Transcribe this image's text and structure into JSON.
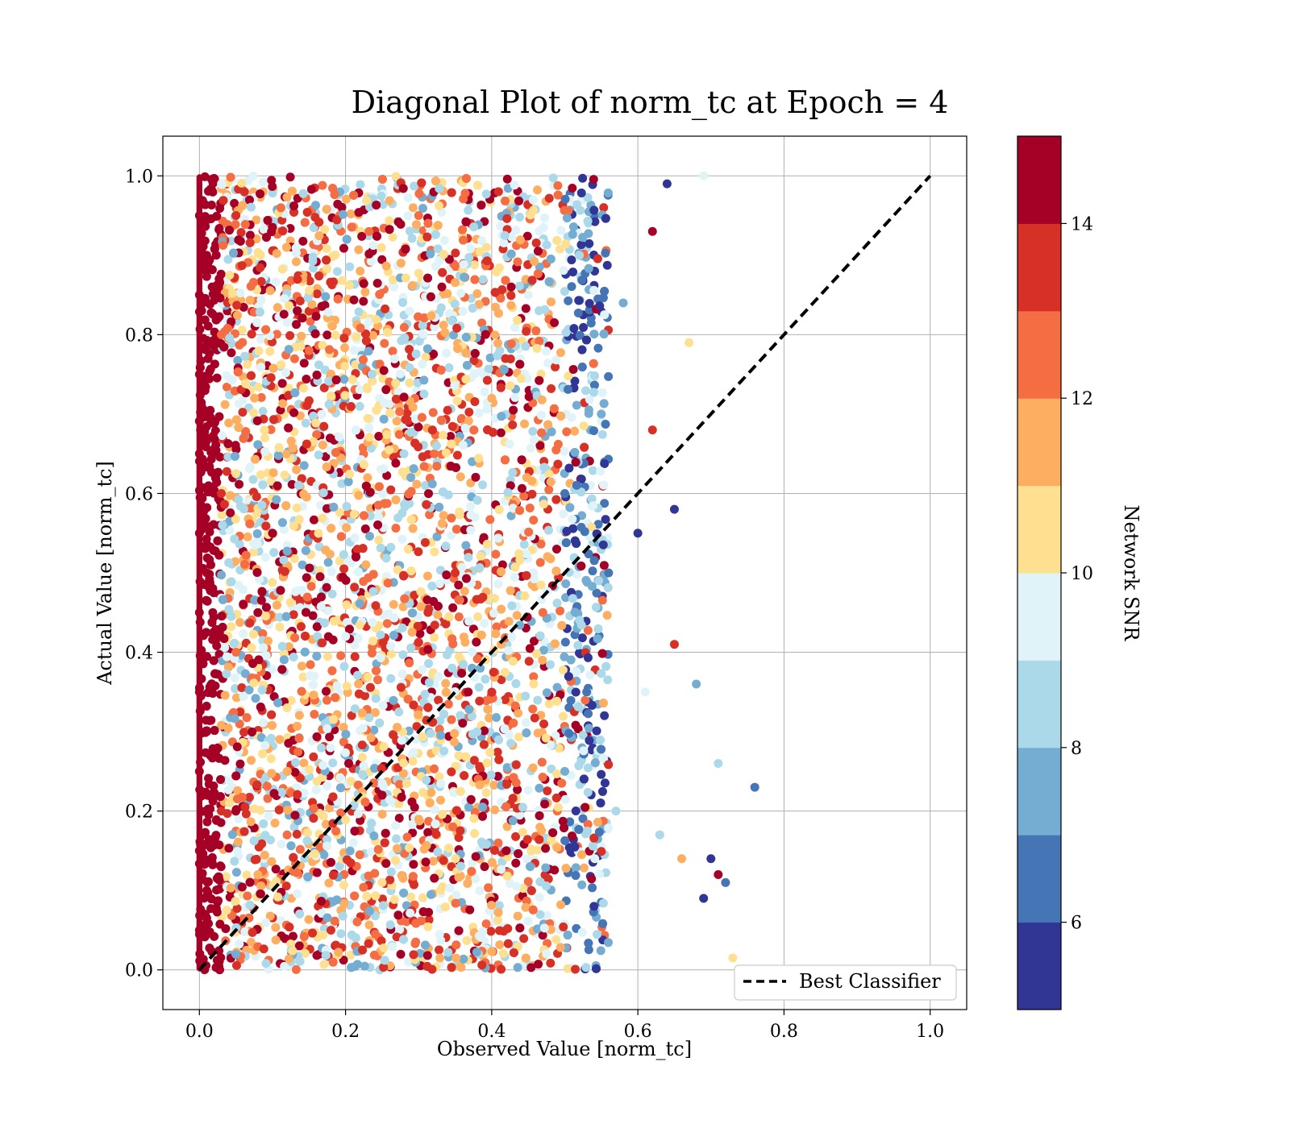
{
  "chart_data": {
    "type": "scatter",
    "title": "Diagonal Plot of norm_tc at Epoch = 4",
    "xlabel": "Observed Value [norm_tc]",
    "ylabel": "Actual Value [norm_tc]",
    "xlim": [
      -0.05,
      1.05
    ],
    "ylim": [
      -0.05,
      1.05
    ],
    "x_ticks": [
      "0.0",
      "0.2",
      "0.4",
      "0.6",
      "0.8",
      "1.0"
    ],
    "y_ticks": [
      "0.0",
      "0.2",
      "0.4",
      "0.6",
      "0.8",
      "1.0"
    ],
    "grid": true,
    "legend": {
      "position": "bottom-right",
      "entries": [
        "Best Classifier"
      ]
    },
    "reference_line": {
      "name": "Best Classifier",
      "style": "dashed",
      "color": "#000000",
      "x": [
        0,
        1
      ],
      "y": [
        0,
        1
      ]
    },
    "colorbar": {
      "label": "Network SNR",
      "range": [
        5,
        15
      ],
      "ticks": [
        "6",
        "8",
        "10",
        "12",
        "14"
      ],
      "colors": [
        "#313695",
        "#4575b4",
        "#74add1",
        "#abd9e9",
        "#e0f3f8",
        "#fee090",
        "#fdae61",
        "#f46d43",
        "#d73027",
        "#a50026"
      ]
    },
    "points": [
      [
        0.0,
        0.05,
        15
      ],
      [
        0.0,
        0.15,
        15
      ],
      [
        0.0,
        0.25,
        15
      ],
      [
        0.0,
        0.35,
        15
      ],
      [
        0.0,
        0.45,
        15
      ],
      [
        0.0,
        0.55,
        15
      ],
      [
        0.0,
        0.65,
        15
      ],
      [
        0.0,
        0.75,
        15
      ],
      [
        0.0,
        0.85,
        15
      ],
      [
        0.0,
        0.95,
        15
      ],
      [
        0.01,
        0.1,
        14.5
      ],
      [
        0.01,
        0.3,
        14.5
      ],
      [
        0.01,
        0.5,
        14.5
      ],
      [
        0.01,
        0.7,
        14.5
      ],
      [
        0.01,
        0.9,
        14.5
      ],
      [
        0.03,
        0.2,
        13.5
      ],
      [
        0.03,
        0.6,
        13.0
      ],
      [
        0.03,
        0.8,
        12.5
      ],
      [
        0.05,
        0.4,
        12.0
      ],
      [
        0.05,
        0.95,
        13.5
      ],
      [
        0.08,
        0.12,
        11.5
      ],
      [
        0.1,
        0.55,
        14.0
      ],
      [
        0.12,
        0.33,
        10.5
      ],
      [
        0.15,
        0.78,
        12.5
      ],
      [
        0.18,
        0.05,
        13.0
      ],
      [
        0.2,
        0.42,
        9.5
      ],
      [
        0.22,
        0.88,
        11.0
      ],
      [
        0.25,
        0.22,
        14.0
      ],
      [
        0.28,
        0.65,
        8.5
      ],
      [
        0.3,
        0.95,
        12.0
      ],
      [
        0.33,
        0.1,
        10.0
      ],
      [
        0.35,
        0.5,
        13.5
      ],
      [
        0.38,
        0.3,
        8.0
      ],
      [
        0.4,
        0.72,
        11.5
      ],
      [
        0.42,
        0.15,
        14.5
      ],
      [
        0.45,
        0.85,
        9.0
      ],
      [
        0.47,
        0.45,
        12.0
      ],
      [
        0.5,
        0.25,
        7.5
      ],
      [
        0.5,
        0.6,
        6.5
      ],
      [
        0.52,
        0.9,
        8.0
      ],
      [
        0.53,
        0.35,
        6.0
      ],
      [
        0.54,
        0.08,
        5.5
      ],
      [
        0.55,
        0.7,
        7.0
      ],
      [
        0.56,
        0.5,
        6.0
      ],
      [
        0.57,
        0.2,
        8.5
      ],
      [
        0.58,
        0.84,
        7.5
      ],
      [
        0.6,
        0.55,
        5.5
      ],
      [
        0.61,
        0.35,
        9.0
      ],
      [
        0.62,
        0.93,
        14.0
      ],
      [
        0.62,
        0.68,
        13.0
      ],
      [
        0.63,
        0.17,
        8.5
      ],
      [
        0.64,
        0.99,
        5.5
      ],
      [
        0.65,
        0.58,
        5.5
      ],
      [
        0.65,
        0.41,
        13.5
      ],
      [
        0.66,
        0.14,
        11.0
      ],
      [
        0.67,
        0.79,
        10.5
      ],
      [
        0.68,
        0.36,
        7.5
      ],
      [
        0.69,
        1.0,
        9.0
      ],
      [
        0.7,
        0.14,
        5.5
      ],
      [
        0.71,
        0.26,
        8.0
      ],
      [
        0.71,
        0.12,
        14.5
      ],
      [
        0.72,
        0.11,
        6.5
      ],
      [
        0.73,
        0.015,
        10.0
      ],
      [
        0.76,
        0.23,
        6.5
      ],
      [
        0.69,
        0.09,
        5.5
      ]
    ]
  }
}
